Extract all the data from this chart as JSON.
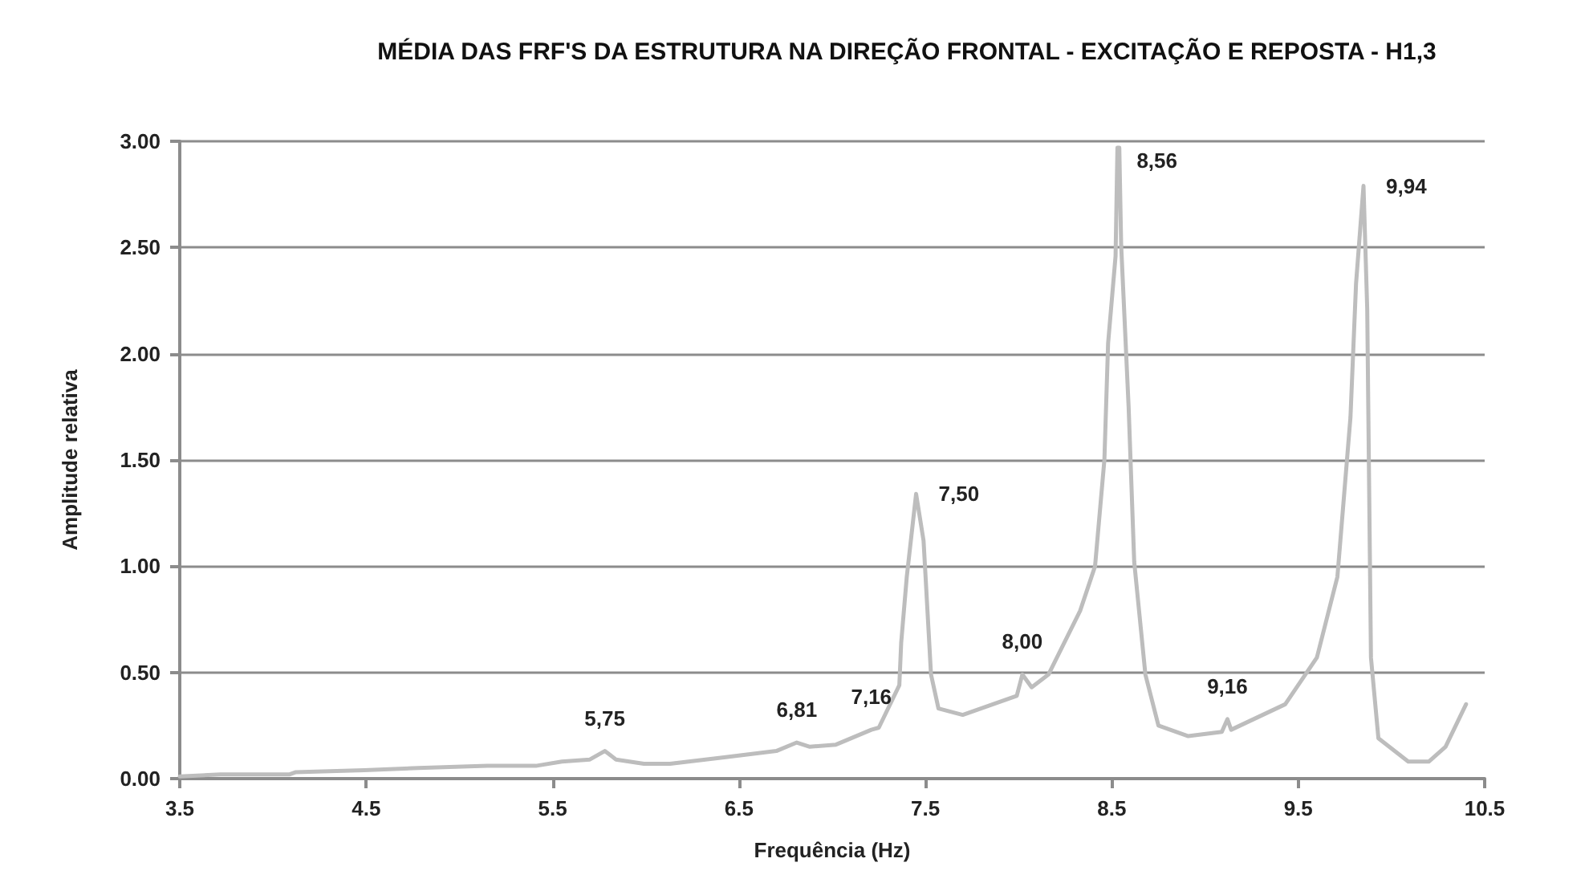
{
  "chart_data": {
    "type": "line",
    "title": "MÉDIA DAS FRF'S DA ESTRUTURA NA DIREÇÃO FRONTAL - EXCITAÇÃO E REPOSTA - H1,3",
    "xlabel": "Frequência (Hz)",
    "ylabel": "Amplitude relativa",
    "series": [
      {
        "color": "#bdbdbd",
        "x": [
          3.5,
          3.72,
          4.09,
          4.12,
          4.49,
          4.78,
          5.15,
          5.41,
          5.55,
          5.7,
          5.78,
          5.84,
          5.99,
          6.13,
          6.42,
          6.7,
          6.81,
          6.88,
          7.02,
          7.21,
          7.25,
          7.36,
          7.37,
          7.4,
          7.45,
          7.49,
          7.53,
          7.57,
          7.7,
          7.99,
          8.02,
          8.07,
          8.16,
          8.33,
          8.41,
          8.46,
          8.48,
          8.52,
          8.53,
          8.54,
          8.55,
          8.59,
          8.62,
          8.68,
          8.75,
          8.91,
          9.09,
          9.12,
          9.14,
          9.43,
          9.6,
          9.71,
          9.78,
          9.81,
          9.85,
          9.87,
          9.89,
          9.93,
          10.09,
          10.2,
          10.29,
          10.4
        ],
        "values": [
          0.01,
          0.02,
          0.02,
          0.03,
          0.04,
          0.05,
          0.06,
          0.06,
          0.08,
          0.09,
          0.13,
          0.09,
          0.07,
          0.07,
          0.1,
          0.13,
          0.17,
          0.15,
          0.16,
          0.23,
          0.24,
          0.44,
          0.64,
          0.95,
          1.34,
          1.12,
          0.49,
          0.33,
          0.3,
          0.39,
          0.49,
          0.43,
          0.49,
          0.79,
          1.0,
          1.5,
          2.05,
          2.46,
          2.97,
          2.97,
          2.51,
          1.75,
          1.02,
          0.49,
          0.25,
          0.2,
          0.22,
          0.28,
          0.23,
          0.35,
          0.57,
          0.95,
          1.7,
          2.33,
          2.79,
          2.21,
          0.57,
          0.19,
          0.08,
          0.08,
          0.15,
          0.35
        ]
      }
    ],
    "xlim": [
      3.5,
      10.5
    ],
    "xticks": [
      3.5,
      4.5,
      5.5,
      6.5,
      7.5,
      8.5,
      9.5,
      10.5
    ],
    "ylim": [
      0,
      3
    ],
    "yticks": [
      {
        "value": 0,
        "label": "0.00"
      },
      {
        "value": 0.5,
        "label": "0.50"
      },
      {
        "value": 1,
        "label": "1.00"
      },
      {
        "value": 1.5,
        "label": "1.50"
      },
      {
        "value": 2,
        "label": "2.00"
      },
      {
        "value": 2.5,
        "label": "2.50"
      },
      {
        "value": 3,
        "label": "3.00"
      }
    ],
    "grid": "y",
    "marker": "none",
    "line_style": "solid",
    "annotations": [
      {
        "text": "5,75",
        "x": 5.78,
        "y": 0.13
      },
      {
        "text": "6,81",
        "x": 6.81,
        "y": 0.17
      },
      {
        "text": "7,16",
        "x": 7.21,
        "y": 0.23
      },
      {
        "text": "7,50",
        "x": 7.45,
        "y": 1.34
      },
      {
        "text": "8,00",
        "x": 8.02,
        "y": 0.49
      },
      {
        "text": "8,56",
        "x": 8.53,
        "y": 2.97
      },
      {
        "text": "9,16",
        "x": 9.12,
        "y": 0.28
      },
      {
        "text": "9,94",
        "x": 9.85,
        "y": 2.79
      }
    ]
  }
}
